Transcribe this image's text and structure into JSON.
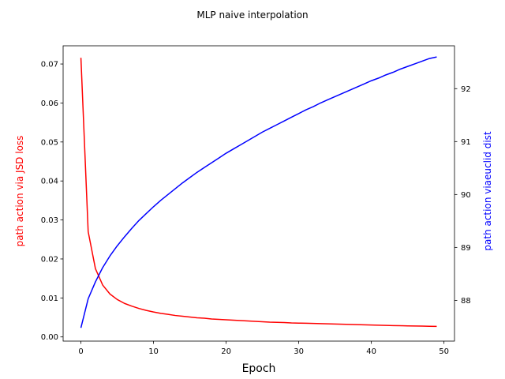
{
  "chart_data": {
    "type": "line",
    "title": "MLP naive interpolation",
    "xlabel": "Epoch",
    "ylabel_left": "path action via JSD loss",
    "ylabel_right": "path action viaeuclid dist",
    "xlim": [
      -2.45,
      51.45
    ],
    "ylim_left": [
      -0.00107,
      0.07467
    ],
    "ylim_right": [
      87.23,
      92.81
    ],
    "xticks": [
      0,
      10,
      20,
      30,
      40,
      50
    ],
    "yticks_left": [
      0.0,
      0.01,
      0.02,
      0.03,
      0.04,
      0.05,
      0.06,
      0.07
    ],
    "yticks_left_labels": [
      "0.00",
      "0.01",
      "0.02",
      "0.03",
      "0.04",
      "0.05",
      "0.06",
      "0.07"
    ],
    "yticks_right": [
      88,
      89,
      90,
      91,
      92
    ],
    "grid": false,
    "series": [
      {
        "axis": "left",
        "color": "#ff0000",
        "x": [
          0,
          1,
          2,
          3,
          4,
          5,
          6,
          7,
          8,
          9,
          10,
          11,
          12,
          13,
          14,
          15,
          16,
          17,
          18,
          19,
          20,
          21,
          22,
          23,
          24,
          25,
          26,
          27,
          28,
          29,
          30,
          31,
          32,
          33,
          34,
          35,
          36,
          37,
          38,
          39,
          40,
          41,
          42,
          43,
          44,
          45,
          46,
          47,
          48,
          49
        ],
        "values": [
          0.0716,
          0.027,
          0.0175,
          0.0133,
          0.011,
          0.0096,
          0.0086,
          0.0079,
          0.0073,
          0.0068,
          0.0064,
          0.00605,
          0.0058,
          0.0055,
          0.0053,
          0.0051,
          0.0049,
          0.0048,
          0.0046,
          0.0045,
          0.0044,
          0.0043,
          0.0042,
          0.0041,
          0.004,
          0.0039,
          0.0038,
          0.00375,
          0.0037,
          0.0036,
          0.00355,
          0.0035,
          0.00345,
          0.0034,
          0.00335,
          0.0033,
          0.00325,
          0.0032,
          0.00315,
          0.0031,
          0.00305,
          0.003,
          0.00295,
          0.0029,
          0.00287,
          0.00283,
          0.0028,
          0.00277,
          0.00273,
          0.0027
        ]
      },
      {
        "axis": "right",
        "color": "#0000ff",
        "x": [
          0,
          1,
          2,
          3,
          4,
          5,
          6,
          7,
          8,
          9,
          10,
          11,
          12,
          13,
          14,
          15,
          16,
          17,
          18,
          19,
          20,
          21,
          22,
          23,
          24,
          25,
          26,
          27,
          28,
          29,
          30,
          31,
          32,
          33,
          34,
          35,
          36,
          37,
          38,
          39,
          40,
          41,
          42,
          43,
          44,
          45,
          46,
          47,
          48,
          49
        ],
        "values": [
          87.48,
          88.03,
          88.35,
          88.62,
          88.84,
          89.03,
          89.2,
          89.36,
          89.51,
          89.64,
          89.77,
          89.89,
          90.0,
          90.11,
          90.22,
          90.32,
          90.42,
          90.51,
          90.6,
          90.69,
          90.78,
          90.86,
          90.94,
          91.02,
          91.1,
          91.18,
          91.25,
          91.32,
          91.39,
          91.46,
          91.53,
          91.6,
          91.66,
          91.73,
          91.79,
          91.85,
          91.91,
          91.97,
          92.03,
          92.09,
          92.15,
          92.2,
          92.26,
          92.31,
          92.37,
          92.42,
          92.47,
          92.52,
          92.57,
          92.6
        ]
      }
    ]
  }
}
